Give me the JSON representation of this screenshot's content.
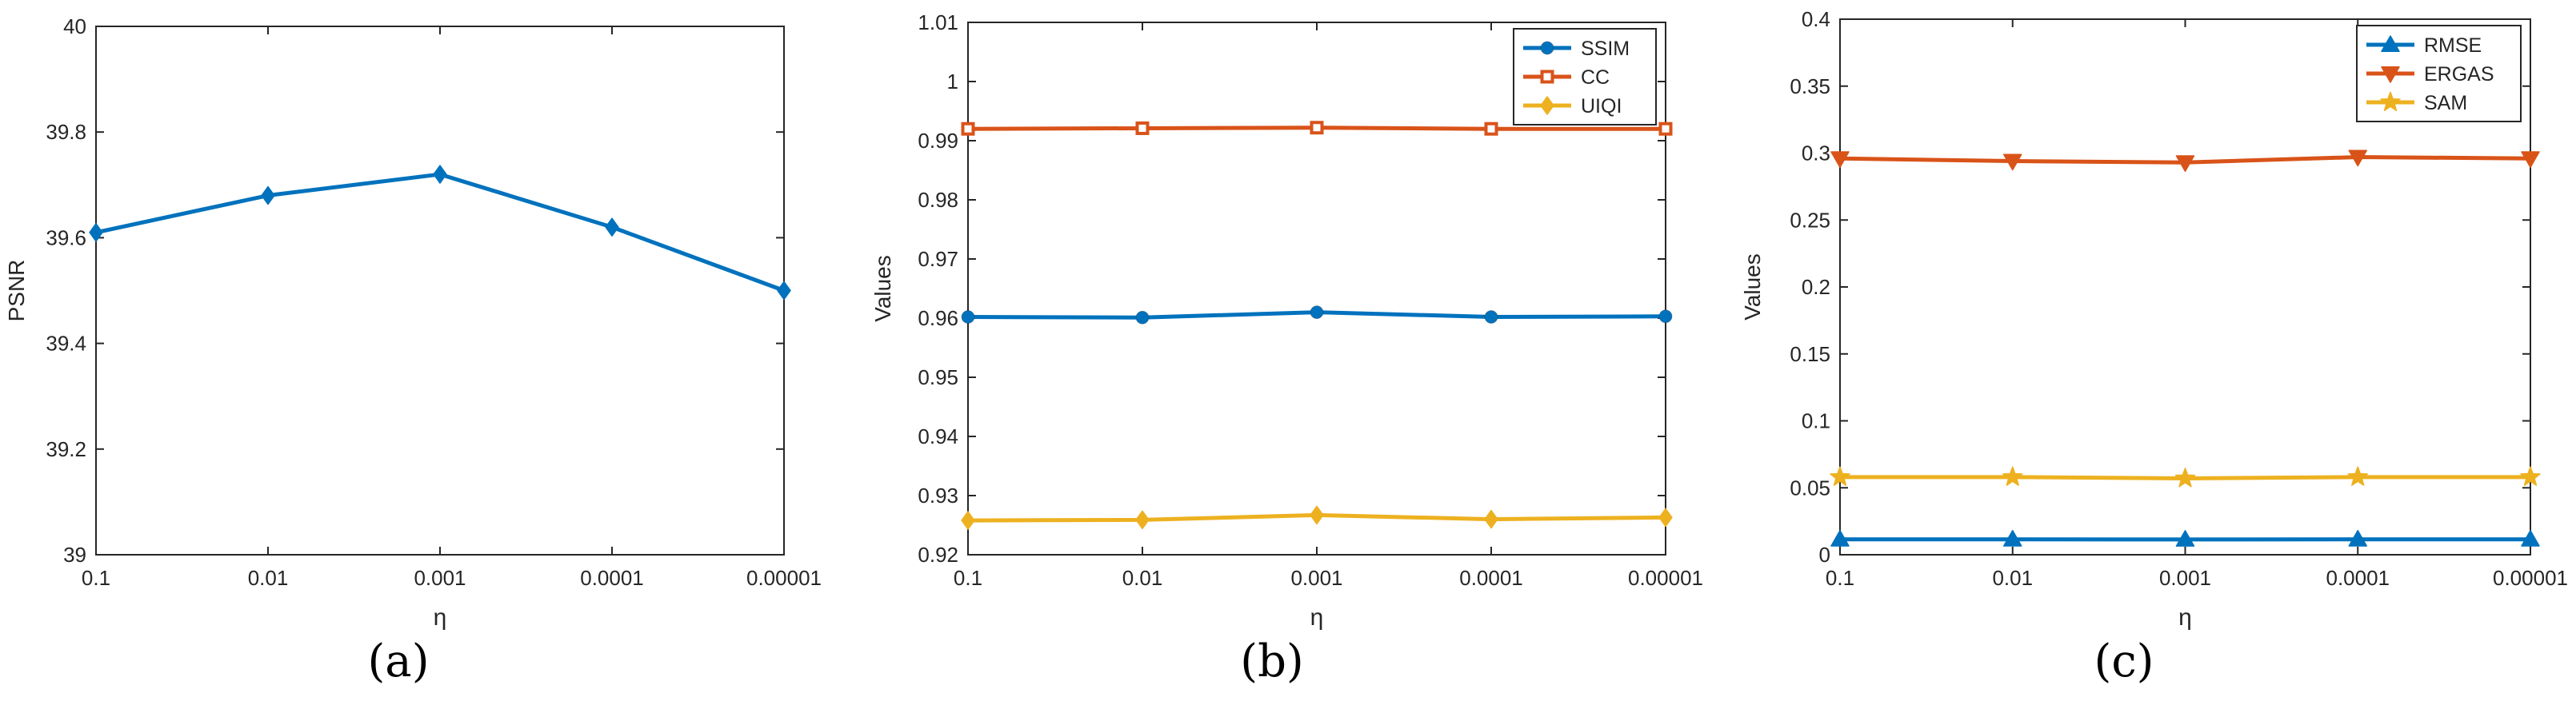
{
  "chart_data": [
    {
      "type": "line",
      "panel_label": "(a)",
      "title": "",
      "xlabel": "η",
      "ylabel": "PSNR",
      "categories": [
        "0.1",
        "0.01",
        "0.001",
        "0.0001",
        "0.00001"
      ],
      "ylim": [
        39,
        40
      ],
      "yticks": [
        39,
        39.2,
        39.4,
        39.6,
        39.8,
        40
      ],
      "ytick_labels": [
        "39",
        "39.2",
        "39.4",
        "39.6",
        "39.8",
        "40"
      ],
      "grid": false,
      "legend": null,
      "series": [
        {
          "name": "PSNR",
          "values": [
            39.61,
            39.68,
            39.72,
            39.62,
            39.5
          ],
          "color": "#0072BD",
          "marker": "diamond"
        }
      ]
    },
    {
      "type": "line",
      "panel_label": "(b)",
      "title": "",
      "xlabel": "η",
      "ylabel": "Values",
      "categories": [
        "0.1",
        "0.01",
        "0.001",
        "0.0001",
        "0.00001"
      ],
      "ylim": [
        0.92,
        1.01
      ],
      "yticks": [
        0.92,
        0.93,
        0.94,
        0.95,
        0.96,
        0.97,
        0.98,
        0.99,
        1.0,
        1.01
      ],
      "ytick_labels": [
        "0.92",
        "0.93",
        "0.94",
        "0.95",
        "0.96",
        "0.97",
        "0.98",
        "0.99",
        "1",
        "1.01"
      ],
      "grid": false,
      "legend": "top-right",
      "series": [
        {
          "name": "SSIM",
          "values": [
            0.9602,
            0.9601,
            0.961,
            0.9602,
            0.9603
          ],
          "color": "#0072BD",
          "marker": "circle"
        },
        {
          "name": "CC",
          "values": [
            0.992,
            0.9921,
            0.9922,
            0.992,
            0.992
          ],
          "color": "#D95319",
          "marker": "square"
        },
        {
          "name": "UIQI",
          "values": [
            0.9258,
            0.9259,
            0.9267,
            0.926,
            0.9263
          ],
          "color": "#EDB120",
          "marker": "diamond"
        }
      ]
    },
    {
      "type": "line",
      "panel_label": "(c)",
      "title": "",
      "xlabel": "η",
      "ylabel": "Values",
      "categories": [
        "0.1",
        "0.01",
        "0.001",
        "0.0001",
        "0.00001"
      ],
      "ylim": [
        0,
        0.4
      ],
      "yticks": [
        0,
        0.05,
        0.1,
        0.15,
        0.2,
        0.25,
        0.3,
        0.35,
        0.4
      ],
      "ytick_labels": [
        "0",
        "0.05",
        "0.1",
        "0.15",
        "0.2",
        "0.25",
        "0.3",
        "0.35",
        "0.4"
      ],
      "grid": false,
      "legend": "top-right",
      "series": [
        {
          "name": "RMSE",
          "values": [
            0.0115,
            0.0115,
            0.0114,
            0.0115,
            0.0115
          ],
          "color": "#0072BD",
          "marker": "triangle-up"
        },
        {
          "name": "ERGAS",
          "values": [
            0.296,
            0.294,
            0.293,
            0.297,
            0.296
          ],
          "color": "#D95319",
          "marker": "triangle-down"
        },
        {
          "name": "SAM",
          "values": [
            0.058,
            0.058,
            0.057,
            0.058,
            0.058
          ],
          "color": "#EDB120",
          "marker": "star"
        }
      ]
    }
  ]
}
